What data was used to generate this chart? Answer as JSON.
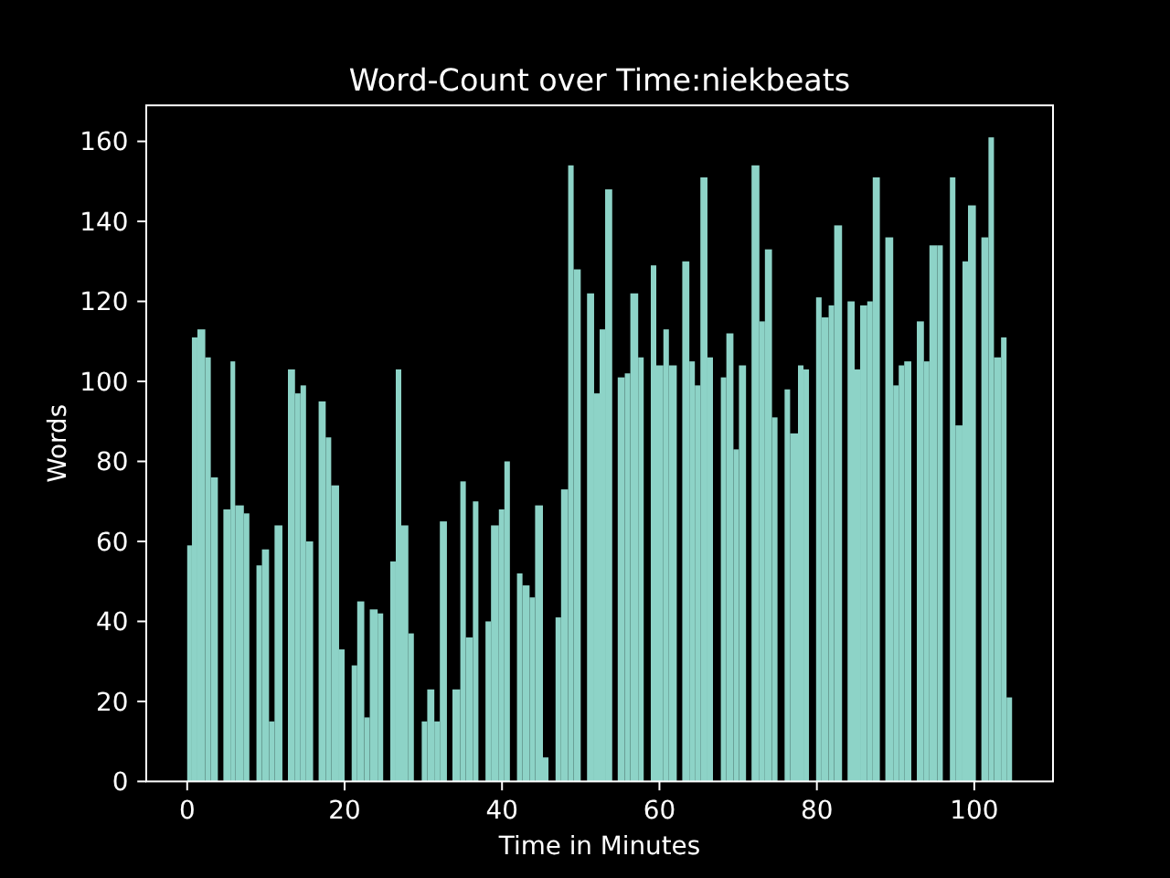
{
  "chart_data": {
    "type": "histogram",
    "title": "Word-Count over Time:niekbeats",
    "xlabel": "Time in Minutes",
    "ylabel": "Words",
    "color": "#8dd3c7",
    "bins": [
      0,
      0.6,
      1.3,
      2.3,
      3.0,
      3.9,
      4.6,
      5.5,
      6.1,
      7.2,
      7.9,
      8.8,
      9.5,
      10.4,
      11.1,
      12.1,
      12.8,
      13.7,
      14.4,
      15.1,
      16.0,
      16.7,
      17.6,
      18.3,
      19.3,
      20.0,
      20.9,
      21.6,
      22.5,
      23.2,
      24.2,
      24.9,
      25.8,
      26.5,
      27.2,
      28.1,
      28.8,
      29.8,
      30.5,
      31.4,
      32.1,
      33.0,
      33.7,
      34.7,
      35.4,
      36.3,
      37.0,
      37.9,
      38.6,
      39.6,
      40.3,
      41.0,
      41.9,
      42.6,
      43.5,
      44.2,
      45.2,
      45.9,
      46.8,
      47.5,
      48.4,
      49.1,
      50.0,
      50.8,
      51.7,
      52.4,
      53.1,
      54.0,
      54.7,
      55.6,
      56.3,
      57.3,
      58.0,
      58.9,
      59.6,
      60.5,
      61.2,
      62.2,
      62.9,
      63.8,
      64.5,
      65.2,
      66.1,
      66.8,
      67.8,
      68.5,
      69.4,
      70.1,
      71.0,
      71.7,
      72.7,
      73.4,
      74.3,
      75.0,
      75.9,
      76.6,
      77.6,
      78.3,
      79.0,
      79.9,
      80.6,
      81.5,
      82.2,
      83.2,
      83.9,
      84.8,
      85.5,
      86.4,
      87.1,
      88.0,
      88.7,
      89.7,
      90.4,
      91.1,
      92.0,
      92.7,
      93.6,
      94.3,
      95.3,
      96.0,
      96.9,
      97.6,
      98.5,
      99.2,
      100.2,
      100.9,
      101.8,
      102.5,
      103.4,
      104.1,
      104.8
    ],
    "values": [
      59,
      111,
      113,
      106,
      76,
      null,
      68,
      105,
      69,
      67,
      null,
      54,
      58,
      15,
      64,
      null,
      103,
      97,
      99,
      60,
      null,
      95,
      86,
      74,
      33,
      null,
      29,
      45,
      16,
      43,
      42,
      null,
      55,
      103,
      64,
      37,
      null,
      15,
      23,
      15,
      65,
      null,
      23,
      75,
      36,
      70,
      null,
      40,
      64,
      68,
      80,
      null,
      52,
      49,
      46,
      69,
      6,
      null,
      41,
      73,
      154,
      128,
      null,
      122,
      97,
      113,
      148,
      null,
      101,
      102,
      122,
      106,
      null,
      129,
      104,
      113,
      104,
      null,
      130,
      105,
      99,
      151,
      106,
      null,
      101,
      112,
      83,
      104,
      null,
      154,
      115,
      133,
      91,
      null,
      98,
      87,
      104,
      103,
      null,
      121,
      116,
      119,
      139,
      null,
      120,
      103,
      119,
      120,
      151,
      null,
      136,
      99,
      104,
      105,
      null,
      115,
      105,
      134,
      134,
      null,
      151,
      89,
      130,
      144,
      null,
      136,
      161,
      106,
      111,
      21
    ],
    "xlim": [
      -5.2,
      110
    ],
    "ylim": [
      0,
      169
    ],
    "xticks": [
      0,
      20,
      40,
      60,
      80,
      100
    ],
    "yticks": [
      0,
      20,
      40,
      60,
      80,
      100,
      120,
      140,
      160
    ]
  }
}
